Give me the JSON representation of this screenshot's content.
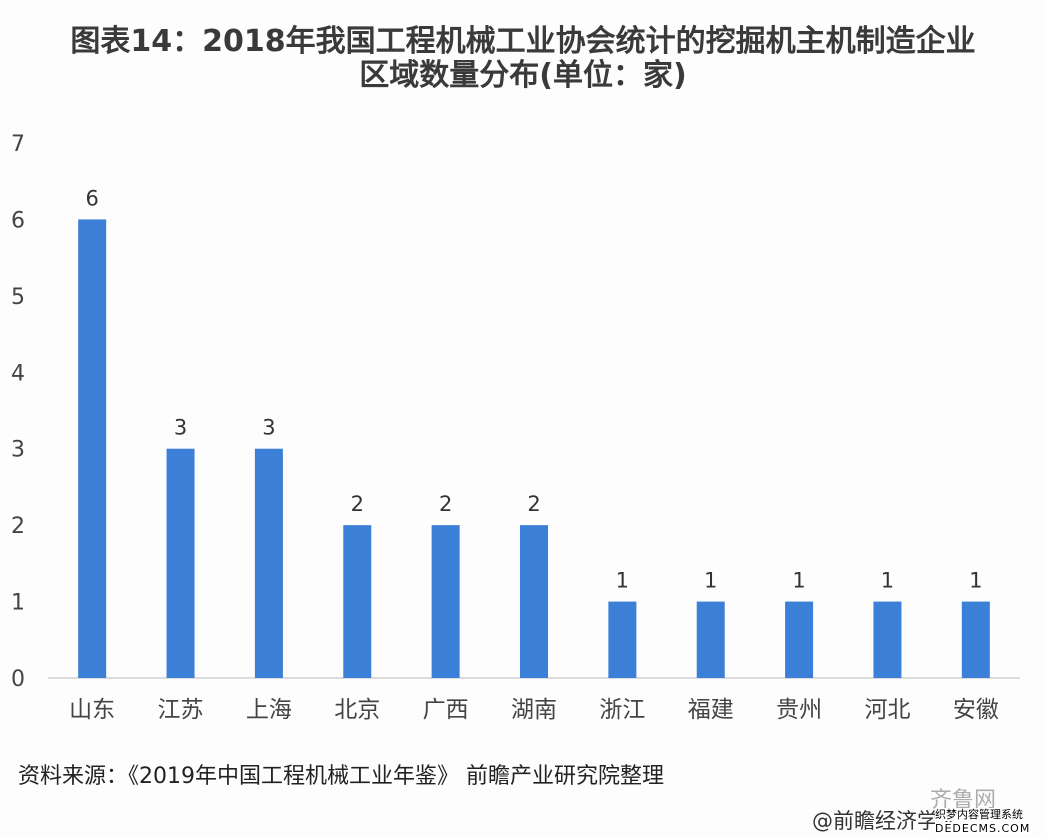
{
  "chart_data": {
    "type": "bar",
    "title_line1": "图表14：2018年我国工程机械工业协会统计的挖掘机主机制造企业",
    "title_line2": "区域数量分布(单位：家)",
    "categories": [
      "山东",
      "江苏",
      "上海",
      "北京",
      "广西",
      "湖南",
      "浙江",
      "福建",
      "贵州",
      "河北",
      "安徽"
    ],
    "values": [
      6,
      3,
      3,
      2,
      2,
      2,
      1,
      1,
      1,
      1,
      1
    ],
    "ylim": [
      0,
      7
    ],
    "yticks": [
      0,
      1,
      2,
      3,
      4,
      5,
      6,
      7
    ],
    "xlabel": "",
    "ylabel": "",
    "grid": false,
    "data_labels": true,
    "bar_color": "#3c7fd6"
  },
  "source": "资料来源：《2019年中国工程机械工业年鉴》 前瞻产业研究院整理",
  "watermarks": {
    "site": "齐鲁网",
    "author": "@前瞻经济学人",
    "cms": "织梦内容管理系统",
    "cms_url": "DEDECMS.COM"
  }
}
